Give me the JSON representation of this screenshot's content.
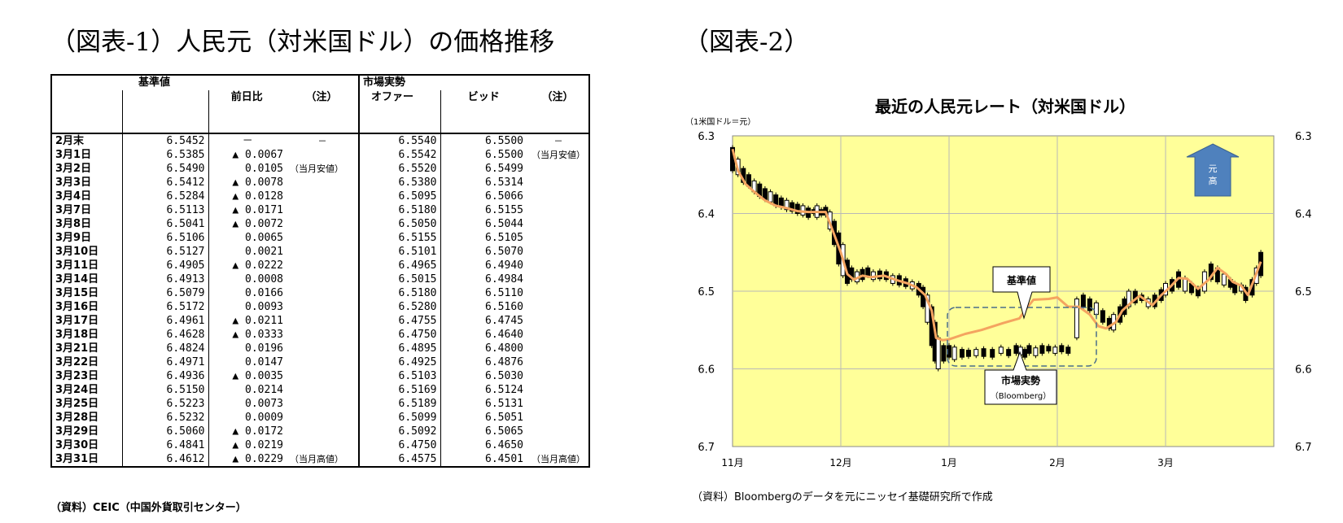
{
  "figure1": {
    "title": "（図表-1）人民元（対米国ドル）の価格推移",
    "headers": {
      "base_group": "基準値",
      "market_group": "市場実勢",
      "prev_day": "前日比",
      "note1": "（注）",
      "offer": "オファー",
      "bid": "ビッド",
      "note2": "（注）"
    },
    "rows": [
      {
        "date": "2月末",
        "base": "6.5452",
        "diff": "－",
        "note1": "－",
        "offer": "6.5540",
        "bid": "6.5500",
        "note2": "－"
      },
      {
        "date": "3月1日",
        "base": "6.5385",
        "diff": "▲ 0.0067",
        "note1": "",
        "offer": "6.5542",
        "bid": "6.5500",
        "note2": "（当月安値）"
      },
      {
        "date": "3月2日",
        "base": "6.5490",
        "diff": "0.0105",
        "note1": "（当月安値）",
        "offer": "6.5520",
        "bid": "6.5499",
        "note2": ""
      },
      {
        "date": "3月3日",
        "base": "6.5412",
        "diff": "▲ 0.0078",
        "note1": "",
        "offer": "6.5380",
        "bid": "6.5314",
        "note2": ""
      },
      {
        "date": "3月4日",
        "base": "6.5284",
        "diff": "▲ 0.0128",
        "note1": "",
        "offer": "6.5095",
        "bid": "6.5066",
        "note2": ""
      },
      {
        "date": "3月7日",
        "base": "6.5113",
        "diff": "▲ 0.0171",
        "note1": "",
        "offer": "6.5180",
        "bid": "6.5155",
        "note2": ""
      },
      {
        "date": "3月8日",
        "base": "6.5041",
        "diff": "▲ 0.0072",
        "note1": "",
        "offer": "6.5050",
        "bid": "6.5044",
        "note2": ""
      },
      {
        "date": "3月9日",
        "base": "6.5106",
        "diff": "0.0065",
        "note1": "",
        "offer": "6.5155",
        "bid": "6.5105",
        "note2": ""
      },
      {
        "date": "3月10日",
        "base": "6.5127",
        "diff": "0.0021",
        "note1": "",
        "offer": "6.5101",
        "bid": "6.5070",
        "note2": ""
      },
      {
        "date": "3月11日",
        "base": "6.4905",
        "diff": "▲ 0.0222",
        "note1": "",
        "offer": "6.4965",
        "bid": "6.4940",
        "note2": ""
      },
      {
        "date": "3月14日",
        "base": "6.4913",
        "diff": "0.0008",
        "note1": "",
        "offer": "6.5015",
        "bid": "6.4984",
        "note2": ""
      },
      {
        "date": "3月15日",
        "base": "6.5079",
        "diff": "0.0166",
        "note1": "",
        "offer": "6.5180",
        "bid": "6.5110",
        "note2": ""
      },
      {
        "date": "3月16日",
        "base": "6.5172",
        "diff": "0.0093",
        "note1": "",
        "offer": "6.5280",
        "bid": "6.5160",
        "note2": ""
      },
      {
        "date": "3月17日",
        "base": "6.4961",
        "diff": "▲ 0.0211",
        "note1": "",
        "offer": "6.4755",
        "bid": "6.4745",
        "note2": ""
      },
      {
        "date": "3月18日",
        "base": "6.4628",
        "diff": "▲ 0.0333",
        "note1": "",
        "offer": "6.4750",
        "bid": "6.4640",
        "note2": ""
      },
      {
        "date": "3月21日",
        "base": "6.4824",
        "diff": "0.0196",
        "note1": "",
        "offer": "6.4895",
        "bid": "6.4800",
        "note2": ""
      },
      {
        "date": "3月22日",
        "base": "6.4971",
        "diff": "0.0147",
        "note1": "",
        "offer": "6.4925",
        "bid": "6.4876",
        "note2": ""
      },
      {
        "date": "3月23日",
        "base": "6.4936",
        "diff": "▲ 0.0035",
        "note1": "",
        "offer": "6.5103",
        "bid": "6.5030",
        "note2": ""
      },
      {
        "date": "3月24日",
        "base": "6.5150",
        "diff": "0.0214",
        "note1": "",
        "offer": "6.5169",
        "bid": "6.5124",
        "note2": ""
      },
      {
        "date": "3月25日",
        "base": "6.5223",
        "diff": "0.0073",
        "note1": "",
        "offer": "6.5189",
        "bid": "6.5131",
        "note2": ""
      },
      {
        "date": "3月28日",
        "base": "6.5232",
        "diff": "0.0009",
        "note1": "",
        "offer": "6.5099",
        "bid": "6.5051",
        "note2": ""
      },
      {
        "date": "3月29日",
        "base": "6.5060",
        "diff": "▲ 0.0172",
        "note1": "",
        "offer": "6.5092",
        "bid": "6.5065",
        "note2": ""
      },
      {
        "date": "3月30日",
        "base": "6.4841",
        "diff": "▲ 0.0219",
        "note1": "",
        "offer": "6.4750",
        "bid": "6.4650",
        "note2": ""
      },
      {
        "date": "3月31日",
        "base": "6.4612",
        "diff": "▲ 0.0229",
        "note1": "（当月高値）",
        "offer": "6.4575",
        "bid": "6.4501",
        "note2": "（当月高値）"
      }
    ],
    "source": "（資料）CEIC（中国外貨取引センター）"
  },
  "figure2": {
    "title": "（図表-2）",
    "source": "（資料）Bloombergのデータを元にニッセイ基礎研究所で作成"
  },
  "colors": {
    "plot_bg": "#ffff99",
    "grid": "#b8b8b8",
    "base_line": "#f4a460",
    "candle": "#000000",
    "arrow": "#4f81bd",
    "callout_border": "#4a6e8a"
  },
  "chart_data": {
    "type": "line",
    "title": "最近の人民元レート（対米国ドル）",
    "unit_label": "（1米国ドル＝元）",
    "ylim": [
      6.3,
      6.7
    ],
    "y_inverted": true,
    "yticks": [
      "6.3",
      "6.4",
      "6.5",
      "6.6",
      "6.7"
    ],
    "xticks": [
      "11月",
      "12月",
      "1月",
      "2月",
      "3月"
    ],
    "grid": true,
    "annotations": {
      "base_label": "基準値",
      "market_label": "市場実勢",
      "market_sub": "（Bloomberg）",
      "arrow_label": [
        "元",
        "高"
      ]
    },
    "series": [
      {
        "name": "基準値",
        "style": "line",
        "points": [
          [
            0.0,
            6.317
          ],
          [
            0.05,
            6.345
          ],
          [
            0.12,
            6.362
          ],
          [
            0.2,
            6.372
          ],
          [
            0.3,
            6.383
          ],
          [
            0.4,
            6.39
          ],
          [
            0.5,
            6.393
          ],
          [
            0.6,
            6.397
          ],
          [
            0.7,
            6.398
          ],
          [
            0.78,
            6.398
          ],
          [
            0.86,
            6.398
          ],
          [
            0.92,
            6.42
          ],
          [
            1.0,
            6.45
          ],
          [
            1.06,
            6.478
          ],
          [
            1.12,
            6.485
          ],
          [
            1.2,
            6.48
          ],
          [
            1.28,
            6.482
          ],
          [
            1.4,
            6.48
          ],
          [
            1.52,
            6.486
          ],
          [
            1.62,
            6.49
          ],
          [
            1.7,
            6.495
          ],
          [
            1.78,
            6.505
          ],
          [
            1.84,
            6.525
          ],
          [
            1.88,
            6.56
          ],
          [
            1.94,
            6.563
          ],
          [
            2.0,
            6.562
          ],
          [
            2.15,
            6.555
          ],
          [
            2.3,
            6.55
          ],
          [
            2.5,
            6.541
          ],
          [
            2.65,
            6.535
          ],
          [
            2.7,
            6.525
          ],
          [
            2.78,
            6.511
          ],
          [
            2.92,
            6.51
          ],
          [
            3.0,
            6.508
          ],
          [
            3.1,
            6.52
          ],
          [
            3.2,
            6.52
          ],
          [
            3.3,
            6.53
          ],
          [
            3.38,
            6.545
          ],
          [
            3.45,
            6.548
          ],
          [
            3.54,
            6.54
          ],
          [
            3.6,
            6.525
          ],
          [
            3.68,
            6.515
          ],
          [
            3.76,
            6.506
          ],
          [
            3.82,
            6.512
          ],
          [
            3.88,
            6.518
          ],
          [
            3.96,
            6.505
          ],
          [
            4.04,
            6.495
          ],
          [
            4.12,
            6.483
          ],
          [
            4.2,
            6.484
          ],
          [
            4.3,
            6.497
          ],
          [
            4.4,
            6.485
          ],
          [
            4.48,
            6.47
          ],
          [
            4.56,
            6.478
          ],
          [
            4.62,
            6.488
          ],
          [
            4.7,
            6.493
          ],
          [
            4.76,
            6.505
          ],
          [
            4.82,
            6.484
          ],
          [
            4.88,
            6.462
          ]
        ]
      },
      {
        "name": "市場実勢",
        "style": "candlestick",
        "ohlc": [
          [
            0.0,
            6.315,
            6.345
          ],
          [
            0.05,
            6.33,
            6.35
          ],
          [
            0.1,
            6.342,
            6.36
          ],
          [
            0.15,
            6.35,
            6.365
          ],
          [
            0.2,
            6.358,
            6.372
          ],
          [
            0.25,
            6.362,
            6.378
          ],
          [
            0.3,
            6.368,
            6.382
          ],
          [
            0.35,
            6.372,
            6.385
          ],
          [
            0.4,
            6.376,
            6.39
          ],
          [
            0.45,
            6.38,
            6.392
          ],
          [
            0.5,
            6.383,
            6.395
          ],
          [
            0.55,
            6.386,
            6.397
          ],
          [
            0.6,
            6.388,
            6.4
          ],
          [
            0.65,
            6.39,
            6.402
          ],
          [
            0.7,
            6.393,
            6.405
          ],
          [
            0.75,
            6.395,
            6.4
          ],
          [
            0.78,
            6.39,
            6.405
          ],
          [
            0.82,
            6.395,
            6.402
          ],
          [
            0.86,
            6.392,
            6.402
          ],
          [
            0.9,
            6.398,
            6.42
          ],
          [
            0.94,
            6.41,
            6.44
          ],
          [
            0.98,
            6.425,
            6.465
          ],
          [
            1.02,
            6.44,
            6.48
          ],
          [
            1.06,
            6.46,
            6.49
          ],
          [
            1.1,
            6.47,
            6.485
          ],
          [
            1.15,
            6.475,
            6.488
          ],
          [
            1.2,
            6.472,
            6.485
          ],
          [
            1.25,
            6.47,
            6.48
          ],
          [
            1.3,
            6.475,
            6.485
          ],
          [
            1.36,
            6.474,
            6.484
          ],
          [
            1.42,
            6.475,
            6.485
          ],
          [
            1.48,
            6.48,
            6.49
          ],
          [
            1.54,
            6.48,
            6.492
          ],
          [
            1.6,
            6.484,
            6.494
          ],
          [
            1.66,
            6.488,
            6.497
          ],
          [
            1.72,
            6.49,
            6.505
          ],
          [
            1.76,
            6.495,
            6.52
          ],
          [
            1.8,
            6.505,
            6.54
          ],
          [
            1.84,
            6.52,
            6.57
          ],
          [
            1.87,
            6.54,
            6.59
          ],
          [
            1.9,
            6.56,
            6.6
          ],
          [
            1.95,
            6.57,
            6.59
          ],
          [
            2.0,
            6.57,
            6.585
          ],
          [
            2.05,
            6.572,
            6.588
          ],
          [
            2.12,
            6.575,
            6.585
          ],
          [
            2.18,
            6.576,
            6.584
          ],
          [
            2.25,
            6.575,
            6.583
          ],
          [
            2.32,
            6.574,
            6.584
          ],
          [
            2.4,
            6.575,
            6.585
          ],
          [
            2.48,
            6.572,
            6.58
          ],
          [
            2.55,
            6.575,
            6.583
          ],
          [
            2.62,
            6.57,
            6.58
          ],
          [
            2.66,
            6.572,
            6.582
          ],
          [
            2.7,
            6.575,
            6.585
          ],
          [
            2.74,
            6.57,
            6.58
          ],
          [
            2.8,
            6.573,
            6.583
          ],
          [
            2.86,
            6.57,
            6.58
          ],
          [
            2.92,
            6.571,
            6.577
          ],
          [
            2.98,
            6.572,
            6.58
          ],
          [
            3.04,
            6.57,
            6.578
          ],
          [
            3.1,
            6.572,
            6.58
          ],
          [
            3.18,
            6.51,
            6.56
          ],
          [
            3.24,
            6.505,
            6.52
          ],
          [
            3.3,
            6.51,
            6.525
          ],
          [
            3.36,
            6.515,
            6.53
          ],
          [
            3.42,
            6.525,
            6.54
          ],
          [
            3.48,
            6.535,
            6.548
          ],
          [
            3.52,
            6.53,
            6.55
          ],
          [
            3.58,
            6.52,
            6.54
          ],
          [
            3.62,
            6.51,
            6.53
          ],
          [
            3.66,
            6.5,
            6.52
          ],
          [
            3.72,
            6.5,
            6.515
          ],
          [
            3.78,
            6.505,
            6.512
          ],
          [
            3.84,
            6.51,
            6.52
          ],
          [
            3.9,
            6.505,
            6.52
          ],
          [
            3.96,
            6.498,
            6.512
          ],
          [
            4.0,
            6.49,
            6.505
          ],
          [
            4.06,
            6.485,
            6.5
          ],
          [
            4.12,
            6.475,
            6.495
          ],
          [
            4.18,
            6.483,
            6.5
          ],
          [
            4.24,
            6.49,
            6.502
          ],
          [
            4.3,
            6.496,
            6.506
          ],
          [
            4.36,
            6.475,
            6.5
          ],
          [
            4.42,
            6.465,
            6.485
          ],
          [
            4.48,
            6.47,
            6.488
          ],
          [
            4.54,
            6.478,
            6.492
          ],
          [
            4.6,
            6.485,
            6.495
          ],
          [
            4.64,
            6.49,
            6.502
          ],
          [
            4.7,
            6.492,
            6.5
          ],
          [
            4.74,
            6.495,
            6.512
          ],
          [
            4.8,
            6.485,
            6.505
          ],
          [
            4.84,
            6.47,
            6.49
          ],
          [
            4.88,
            6.45,
            6.48
          ]
        ]
      }
    ]
  }
}
